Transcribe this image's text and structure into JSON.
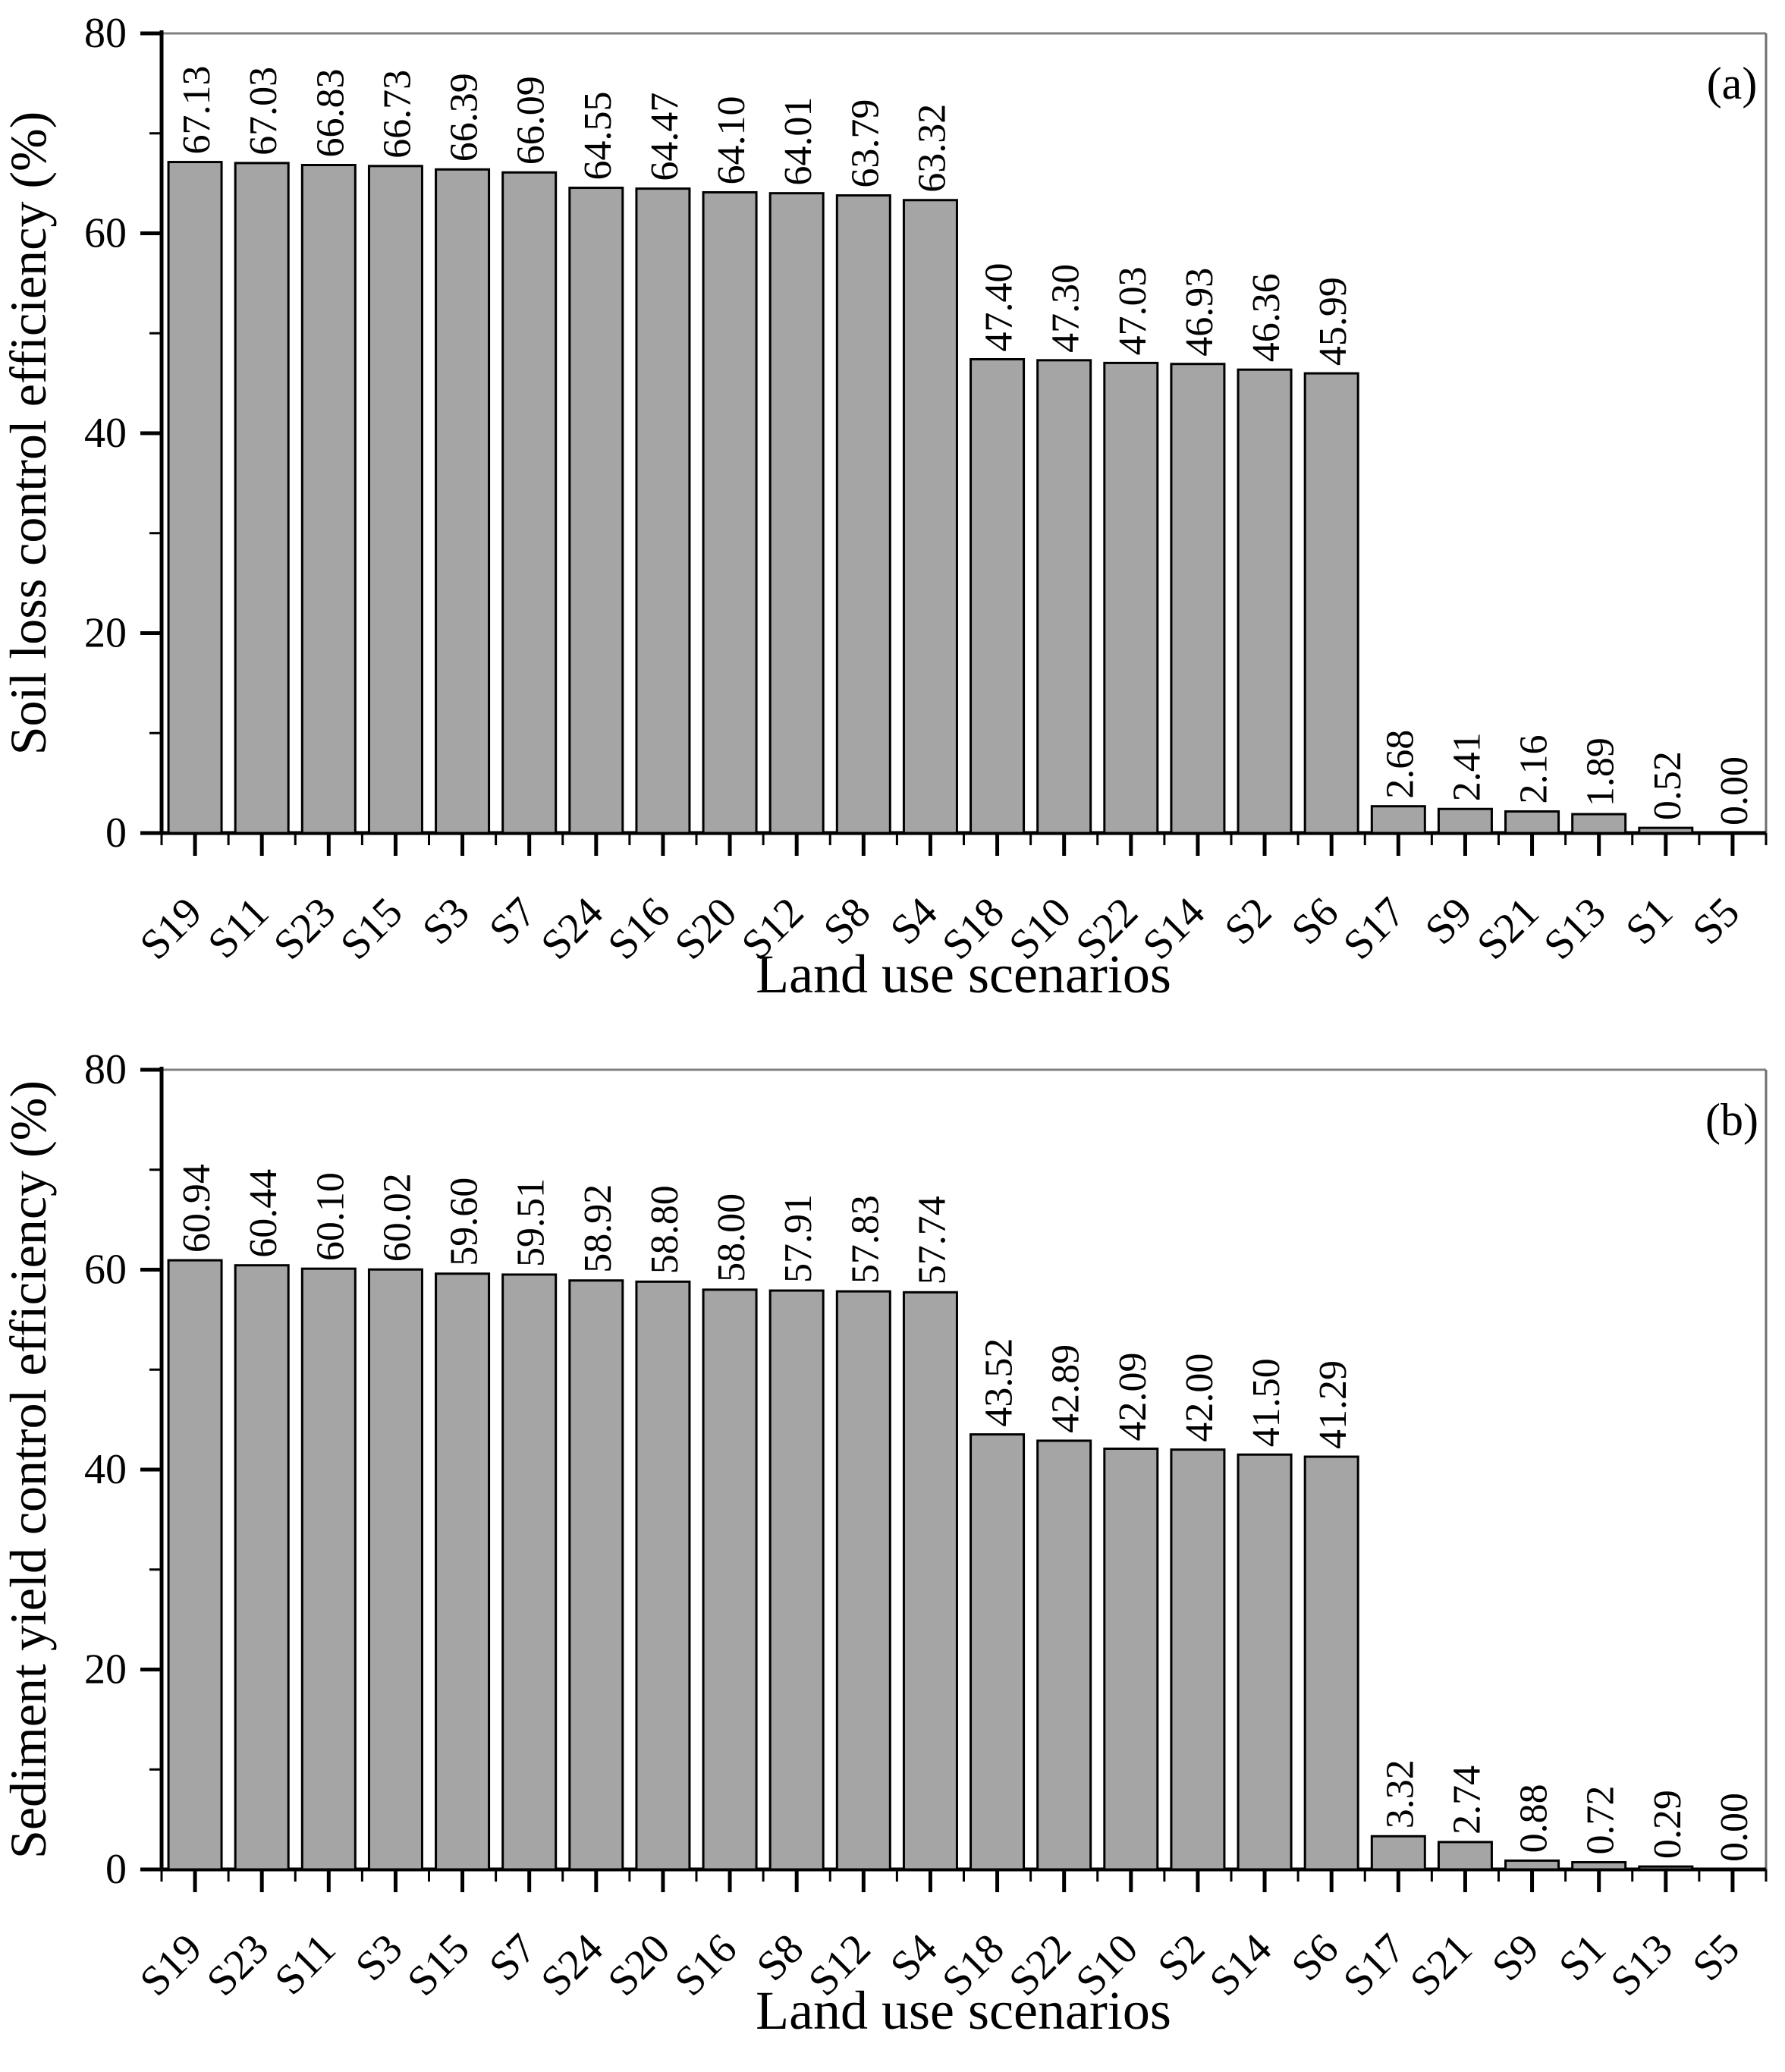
{
  "figure": {
    "background": "#ffffff",
    "bar_fill": "#a5a5a5",
    "bar_stroke": "#000000",
    "axis_color": "#000000",
    "frame_color": "#808080",
    "text_color": "#000000"
  },
  "chart_data": [
    {
      "type": "bar",
      "panel": "(a)",
      "title": "",
      "xlabel": "Land use scenarios",
      "ylabel": "Soil loss control efficiency (%)",
      "ylim": [
        0,
        80
      ],
      "yticks_major": [
        0,
        20,
        40,
        60,
        80
      ],
      "yticks_minor": [
        10,
        30,
        50,
        70
      ],
      "grid": false,
      "legend": "none",
      "value_label_format": "2-decimals",
      "categories": [
        "S19",
        "S11",
        "S23",
        "S15",
        "S3",
        "S7",
        "S24",
        "S16",
        "S20",
        "S12",
        "S8",
        "S4",
        "S18",
        "S10",
        "S22",
        "S14",
        "S2",
        "S6",
        "S17",
        "S9",
        "S21",
        "S13",
        "S1",
        "S5"
      ],
      "values": [
        67.13,
        67.03,
        66.83,
        66.73,
        66.39,
        66.09,
        64.55,
        64.47,
        64.1,
        64.01,
        63.79,
        63.32,
        47.4,
        47.3,
        47.03,
        46.93,
        46.36,
        45.99,
        2.68,
        2.41,
        2.16,
        1.89,
        0.52,
        0.0
      ]
    },
    {
      "type": "bar",
      "panel": "(b)",
      "title": "",
      "xlabel": "Land use scenarios",
      "ylabel": "Sediment yield control efficiency (%)",
      "ylim": [
        0,
        80
      ],
      "yticks_major": [
        0,
        20,
        40,
        60,
        80
      ],
      "yticks_minor": [
        10,
        30,
        50,
        70
      ],
      "grid": false,
      "legend": "none",
      "value_label_format": "2-decimals",
      "categories": [
        "S19",
        "S23",
        "S11",
        "S3",
        "S15",
        "S7",
        "S24",
        "S20",
        "S16",
        "S8",
        "S12",
        "S4",
        "S18",
        "S22",
        "S10",
        "S2",
        "S14",
        "S6",
        "S17",
        "S21",
        "S9",
        "S1",
        "S13",
        "S5"
      ],
      "values": [
        60.94,
        60.44,
        60.1,
        60.02,
        59.6,
        59.51,
        58.92,
        58.8,
        58.0,
        57.91,
        57.83,
        57.74,
        43.52,
        42.89,
        42.09,
        42.0,
        41.5,
        41.29,
        3.32,
        2.74,
        0.88,
        0.72,
        0.29,
        0.0
      ]
    }
  ]
}
